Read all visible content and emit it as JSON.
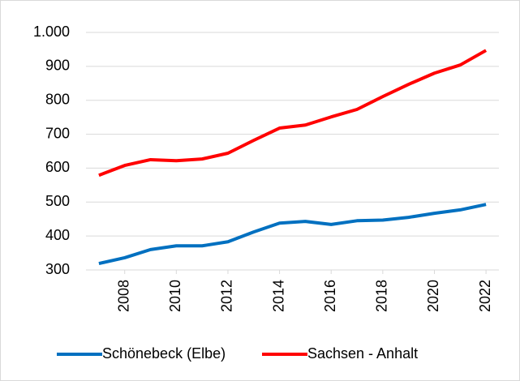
{
  "chart_data": {
    "type": "line",
    "x": [
      2007,
      2008,
      2009,
      2010,
      2011,
      2012,
      2013,
      2014,
      2015,
      2016,
      2017,
      2018,
      2019,
      2020,
      2021,
      2022
    ],
    "xlim": [
      2006.5,
      2022.5
    ],
    "xticks": [
      2008,
      2010,
      2012,
      2014,
      2016,
      2018,
      2020,
      2022
    ],
    "ylim": [
      300,
      1000
    ],
    "yticks": [
      300,
      400,
      500,
      600,
      700,
      800,
      900,
      {
        "value": 1000,
        "label": "1.000"
      }
    ],
    "grid": true,
    "legend": "bottom",
    "series": [
      {
        "name": "Schönebeck (Elbe)",
        "color": "#0070c0",
        "values": [
          319,
          336,
          360,
          371,
          371,
          383,
          412,
          438,
          443,
          434,
          445,
          447,
          455,
          467,
          477,
          493
        ]
      },
      {
        "name": "Sachsen - Anhalt",
        "color": "#ff0000",
        "values": [
          579,
          608,
          625,
          622,
          627,
          644,
          682,
          718,
          727,
          751,
          773,
          811,
          847,
          880,
          904,
          947
        ]
      }
    ]
  }
}
